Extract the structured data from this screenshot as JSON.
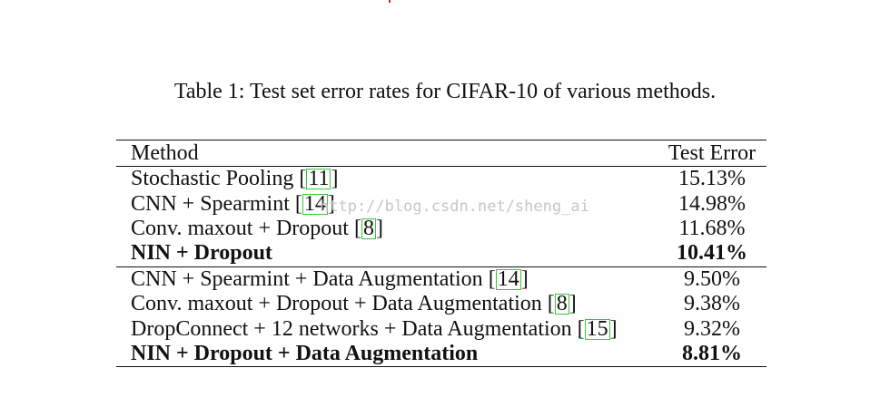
{
  "caption": "Table 1: Test set error rates for CIFAR-10 of various methods.",
  "watermark": "http://blog.csdn.net/sheng_ai",
  "table": {
    "headers": {
      "method": "Method",
      "test_error": "Test Error"
    },
    "groups": [
      {
        "rows": [
          {
            "method": "Stochastic Pooling",
            "cite": "11",
            "error": "15.13%",
            "bold": false
          },
          {
            "method": "CNN + Spearmint",
            "cite": "14",
            "error": "14.98%",
            "bold": false
          },
          {
            "method": "Conv. maxout + Dropout",
            "cite": "8",
            "error": "11.68%",
            "bold": false
          },
          {
            "method": "NIN + Dropout",
            "cite": "",
            "error": "10.41%",
            "bold": true
          }
        ]
      },
      {
        "rows": [
          {
            "method": "CNN + Spearmint + Data Augmentation",
            "cite": "14",
            "error": "9.50%",
            "bold": false
          },
          {
            "method": "Conv. maxout + Dropout + Data Augmentation",
            "cite": "8",
            "error": "9.38%",
            "bold": false
          },
          {
            "method": "DropConnect + 12 networks + Data Augmentation",
            "cite": "15",
            "error": "9.32%",
            "bold": false
          },
          {
            "method": "NIN + Dropout + Data Augmentation",
            "cite": "",
            "error": "8.81%",
            "bold": true
          }
        ]
      }
    ]
  },
  "colors": {
    "citation_box": "#33cc33",
    "watermark": "#c7c7c7",
    "red_mark": "#d32020"
  }
}
